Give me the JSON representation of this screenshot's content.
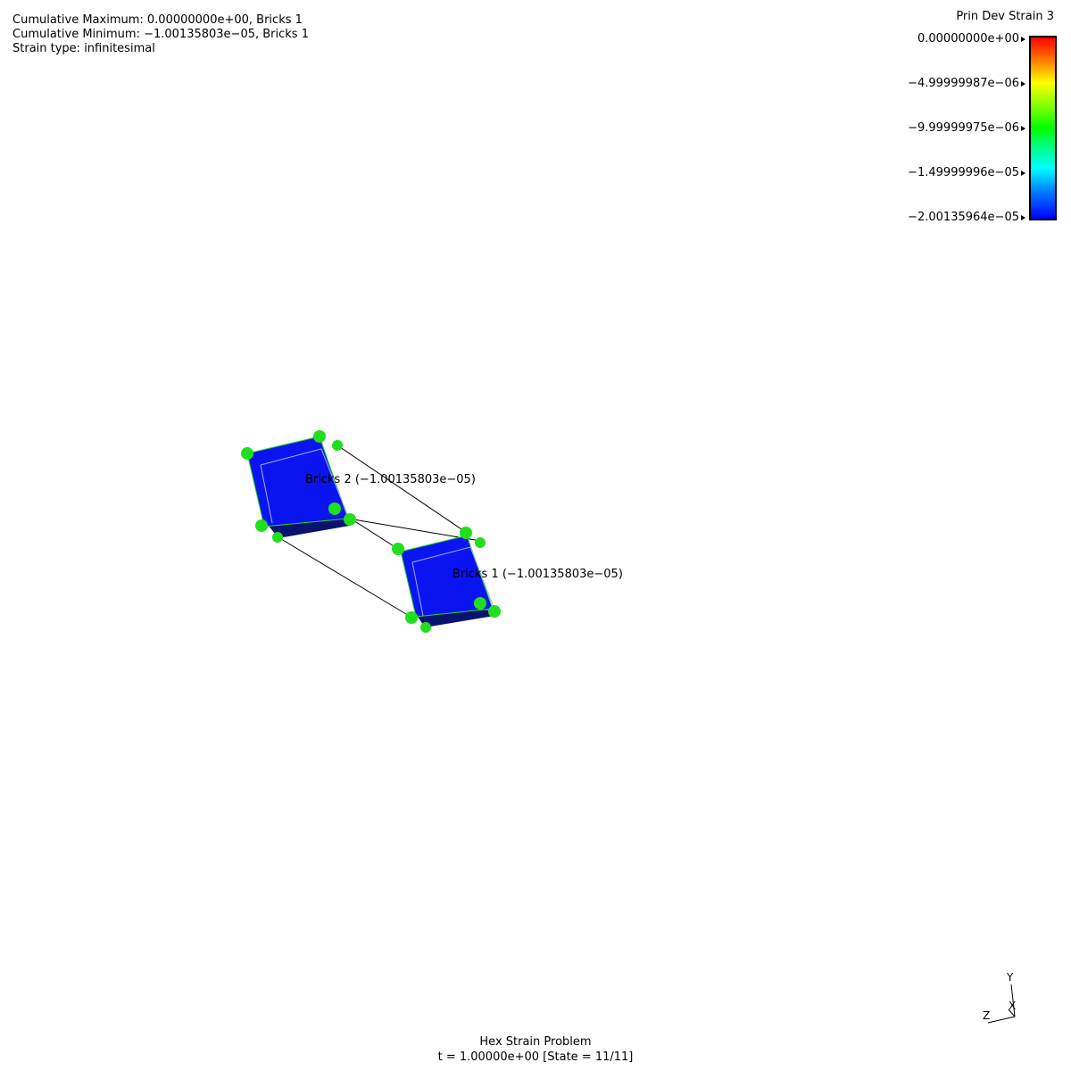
{
  "info": {
    "cumulative_max": "Cumulative Maximum: 0.00000000e+00, Bricks 1",
    "cumulative_min": "Cumulative Minimum: −1.00135803e−05, Bricks 1",
    "strain_type": "Strain type: infinitesimal"
  },
  "legend": {
    "title": "Prin Dev Strain 3",
    "ticks": [
      "0.00000000e+00",
      "−4.99999987e−06",
      "−9.99999975e−06",
      "−1.49999996e−05",
      "−2.00135964e−05"
    ],
    "colors": [
      "#ff0000",
      "#ffff00",
      "#00ff00",
      "#00ffff",
      "#0000ff"
    ]
  },
  "bricks": [
    {
      "label": "Bricks 2 (−1.00135803e−05)",
      "face_color": "#0a14f0",
      "node_color": "#1fe01f"
    },
    {
      "label": "Bricks 1 (−1.00135803e−05)",
      "face_color": "#0a14f0",
      "node_color": "#1fe01f"
    }
  ],
  "axes": {
    "y": "Y",
    "x": "X",
    "z": "Z"
  },
  "footer": {
    "title": "Hex Strain Problem",
    "state": "t = 1.00000e+00 [State = 11/11]"
  }
}
